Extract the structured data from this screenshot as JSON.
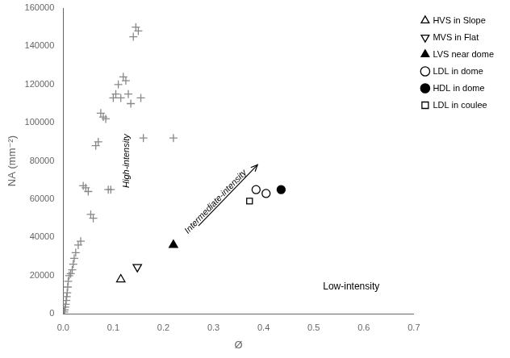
{
  "chart_data": {
    "type": "scatter",
    "xlabel": "Ø",
    "ylabel": "NA (mm⁻²)",
    "xlim": [
      0,
      0.7
    ],
    "ylim": [
      0,
      160000
    ],
    "xticks": [
      {
        "value": 0,
        "label": "0.0"
      },
      0.1,
      0.2,
      0.3,
      0.4,
      0.5,
      0.6,
      0.7
    ],
    "yticks": [
      0,
      20000,
      40000,
      60000,
      80000,
      100000,
      120000,
      140000,
      160000
    ],
    "grid": false,
    "legend": "upper right",
    "series": [
      {
        "color": "#888888",
        "marker": "plus",
        "x": [
          0.002,
          0.003,
          0.004,
          0.005,
          0.006,
          0.007,
          0.008,
          0.009,
          0.01,
          0.012,
          0.015,
          0.018,
          0.02,
          0.022,
          0.025,
          0.03,
          0.035,
          0.04,
          0.045,
          0.05,
          0.055,
          0.06,
          0.065,
          0.07,
          0.075,
          0.08,
          0.085,
          0.09,
          0.095,
          0.1,
          0.105,
          0.11,
          0.115,
          0.12,
          0.125,
          0.13,
          0.135,
          0.14,
          0.145,
          0.15,
          0.155,
          0.16,
          0.22
        ],
        "values": [
          1000,
          2000,
          3500,
          5000,
          7000,
          9000,
          11000,
          14000,
          17000,
          20000,
          21000,
          23000,
          26000,
          29000,
          32000,
          36000,
          38000,
          67000,
          66000,
          64000,
          52000,
          50000,
          88000,
          90000,
          105000,
          103000,
          102000,
          65000,
          65000,
          113000,
          115000,
          120000,
          113000,
          124000,
          122000,
          115000,
          110000,
          145000,
          150000,
          148000,
          113000,
          92000,
          92000
        ]
      },
      {
        "name": "HVS in Slope",
        "color": "black",
        "marker": "triangle-up-open",
        "x": [
          0.115
        ],
        "values": [
          18000
        ]
      },
      {
        "name": "MVS in Flat",
        "color": "black",
        "marker": "triangle-down-open",
        "x": [
          0.148
        ],
        "values": [
          24500
        ]
      },
      {
        "name": "LVS near dome",
        "color": "black",
        "marker": "triangle-up-filled",
        "x": [
          0.22
        ],
        "values": [
          36000
        ]
      },
      {
        "name": "LDL in dome",
        "color": "black",
        "marker": "circle-open",
        "x": [
          0.385,
          0.405
        ],
        "values": [
          65000,
          63000
        ]
      },
      {
        "name": "HDL in dome",
        "color": "black",
        "marker": "circle-filled",
        "x": [
          0.435
        ],
        "values": [
          65000
        ]
      },
      {
        "name": "LDL in coulee",
        "color": "black",
        "marker": "square-open",
        "x": [
          0.372
        ],
        "values": [
          59000
        ]
      }
    ],
    "arrow": {
      "from": [
        0.27,
        46000
      ],
      "to": [
        0.388,
        78000
      ]
    },
    "annotations": [
      {
        "text": "High-intensity",
        "x": 0.127,
        "y": 80000
      },
      {
        "text": "Intermediate-intensity",
        "x": 0.315,
        "y": 56000
      },
      {
        "text": "Low-intensity",
        "x": 0.575,
        "y": 14000
      }
    ]
  }
}
